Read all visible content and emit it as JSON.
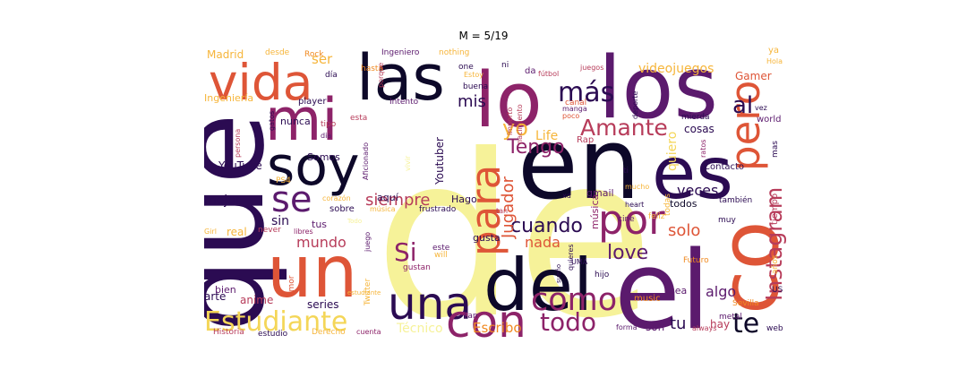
{
  "title": "M = 5/19",
  "palette": {
    "black": "#0d0829",
    "deep_purple": "#2b0b52",
    "purple": "#5b1a6d",
    "magenta": "#8d2369",
    "crimson": "#b73c5a",
    "red_orange": "#de5537",
    "orange": "#f08a22",
    "amber": "#f6b53a",
    "yellow": "#f4d658",
    "pale_yellow": "#f6f299"
  },
  "words": [
    {
      "text": "de",
      "color": "#f6f299"
    },
    {
      "text": "en",
      "color": "#0d0829"
    },
    {
      "text": "es",
      "color": "#2b0b52"
    },
    {
      "text": "los",
      "color": "#5b1a6d"
    },
    {
      "text": "que",
      "color": "#2b0b52"
    },
    {
      "text": "el",
      "color": "#5b1a6d"
    },
    {
      "text": "lo",
      "color": "#8d2369"
    },
    {
      "text": "del",
      "color": "#0d0829"
    },
    {
      "text": "un",
      "color": "#de5537"
    },
    {
      "text": "las",
      "color": "#0d0829"
    },
    {
      "text": "mi",
      "color": "#8d2369"
    },
    {
      "text": "vida",
      "color": "#de5537"
    },
    {
      "text": "soy",
      "color": "#0d0829"
    },
    {
      "text": "co",
      "color": "#de5537"
    },
    {
      "text": "una",
      "color": "#2b0b52"
    },
    {
      "text": "con",
      "color": "#8d2369"
    },
    {
      "text": "por",
      "color": "#8d2369"
    },
    {
      "text": "para",
      "color": "#de5537"
    },
    {
      "text": "pero",
      "color": "#de5537"
    },
    {
      "text": "se",
      "color": "#5b1a6d"
    },
    {
      "text": "como",
      "color": "#8d2369"
    },
    {
      "text": "Estudiante",
      "color": "#f4d658"
    },
    {
      "text": "más",
      "color": "#2b0b52"
    },
    {
      "text": "Amante",
      "color": "#b73c5a"
    },
    {
      "text": "Instagram",
      "color": "#b73c5a"
    },
    {
      "text": "te",
      "color": "#0d0829"
    },
    {
      "text": "Si",
      "color": "#8d2369"
    },
    {
      "text": "todo",
      "color": "#8d2369"
    },
    {
      "text": "Tengo",
      "color": "#8d2369"
    },
    {
      "text": "cuando",
      "color": "#2b0b52"
    },
    {
      "text": "love",
      "color": "#5b1a6d"
    },
    {
      "text": "yo",
      "color": "#f6b53a"
    },
    {
      "text": "al",
      "color": "#2b0b52"
    },
    {
      "text": "Jugador",
      "color": "#de5537"
    },
    {
      "text": "videojuegos",
      "color": "#f6b53a"
    },
    {
      "text": "siempre",
      "color": "#b73c5a"
    },
    {
      "text": "mis",
      "color": "#2b0b52"
    },
    {
      "text": "algo",
      "color": "#5b1a6d"
    },
    {
      "text": "veces",
      "color": "#2b0b52"
    },
    {
      "text": "solo",
      "color": "#de5537"
    },
    {
      "text": "nada",
      "color": "#de5537"
    },
    {
      "text": "tu",
      "color": "#2b0b52"
    },
    {
      "text": "mundo",
      "color": "#b73c5a"
    },
    {
      "text": "Técnico",
      "color": "#f6f299"
    },
    {
      "text": "Escribo",
      "color": "#f08a22"
    },
    {
      "text": "quiero",
      "color": "#f4d658"
    },
    {
      "text": "Life",
      "color": "#f6b53a"
    },
    {
      "text": "sin",
      "color": "#2b0b52"
    },
    {
      "text": "mejor",
      "color": "#2b0b52"
    },
    {
      "text": "ser",
      "color": "#f6b53a"
    },
    {
      "text": "Gamer",
      "color": "#de5537"
    },
    {
      "text": "Youtuber",
      "color": "#2b0b52"
    },
    {
      "text": "música",
      "color": "#8d2369"
    },
    {
      "text": "Madrid",
      "color": "#f6b53a"
    },
    {
      "text": "Ingeniería",
      "color": "#f6b53a"
    },
    {
      "text": "YouTube",
      "color": "#2b0b52"
    },
    {
      "text": "cosas",
      "color": "#2b0b52"
    },
    {
      "text": "anime",
      "color": "#b73c5a"
    },
    {
      "text": "series",
      "color": "#2b0b52"
    },
    {
      "text": "arte",
      "color": "#2b0b52"
    },
    {
      "text": "bien",
      "color": "#5b1a6d"
    },
    {
      "text": "real",
      "color": "#f6b53a"
    },
    {
      "text": "nunca",
      "color": "#2b0b52"
    },
    {
      "text": "gusta",
      "color": "#2b0b52"
    },
    {
      "text": "sea",
      "color": "#5b1a6d"
    },
    {
      "text": "hay",
      "color": "#b73c5a"
    },
    {
      "text": "son",
      "color": "#5b1a6d"
    },
    {
      "text": "todos",
      "color": "#0d0829"
    },
    {
      "text": "tiempo",
      "color": "#b73c5a"
    },
    {
      "text": "Hago",
      "color": "#2b0b52"
    },
    {
      "text": "aquí",
      "color": "#2b0b52"
    },
    {
      "text": "Somos",
      "color": "#2b0b52"
    },
    {
      "text": "tus",
      "color": "#5b1a6d"
    },
    {
      "text": "sobre",
      "color": "#2b0b52"
    },
    {
      "text": "gmail",
      "color": "#5b1a6d"
    },
    {
      "text": "Contacto",
      "color": "#2b0b52"
    },
    {
      "text": "Rap",
      "color": "#b73c5a"
    },
    {
      "text": "music",
      "color": "#f08a22"
    },
    {
      "text": "Futuro",
      "color": "#f08a22"
    },
    {
      "text": "hijo",
      "color": "#2b0b52"
    },
    {
      "text": "world",
      "color": "#5b1a6d"
    },
    {
      "text": "mierda",
      "color": "#2b0b52"
    },
    {
      "text": "mas",
      "color": "#2b0b52"
    },
    {
      "text": "Fan",
      "color": "#5b1a6d"
    },
    {
      "text": "Historia",
      "color": "#b73c5a"
    },
    {
      "text": "estudio",
      "color": "#2b0b52"
    },
    {
      "text": "Derecho",
      "color": "#f6b53a"
    },
    {
      "text": "cuenta",
      "color": "#8d2369"
    },
    {
      "text": "forma",
      "color": "#5b1a6d"
    },
    {
      "text": "always",
      "color": "#b73c5a"
    },
    {
      "text": "web",
      "color": "#2b0b52"
    },
    {
      "text": "Sevilla",
      "color": "#f08a22"
    },
    {
      "text": "metal",
      "color": "#5b1a6d"
    },
    {
      "text": "US",
      "color": "#2b0b52"
    },
    {
      "text": "años",
      "color": "#f6b53a"
    },
    {
      "text": "muy",
      "color": "#2b0b52"
    },
    {
      "text": "feliz",
      "color": "#f6b53a"
    },
    {
      "text": "también",
      "color": "#2b0b52"
    },
    {
      "text": "quieres",
      "color": "#2b0b52"
    },
    {
      "text": "UMA",
      "color": "#2b0b52"
    },
    {
      "text": "cine",
      "color": "#5b1a6d"
    },
    {
      "text": "heart",
      "color": "#2b0b52"
    },
    {
      "text": "ti",
      "color": "#2b0b52"
    },
    {
      "text": "mucho",
      "color": "#f6b53a"
    },
    {
      "text": "estudiante",
      "color": "#f6b53a"
    },
    {
      "text": "gustan",
      "color": "#8d2369"
    },
    {
      "text": "will",
      "color": "#f6b53a"
    },
    {
      "text": "este",
      "color": "#5b1a6d"
    },
    {
      "text": "tan",
      "color": "#b73c5a"
    },
    {
      "text": "frustrado",
      "color": "#2b0b52"
    },
    {
      "text": "música",
      "color": "#f6b53a"
    },
    {
      "text": "corazón",
      "color": "#f6b53a"
    },
    {
      "text": "PS4",
      "color": "#f6b53a"
    },
    {
      "text": "Twitter",
      "color": "#f6b53a"
    },
    {
      "text": "juego",
      "color": "#5b1a6d"
    },
    {
      "text": "never",
      "color": "#b73c5a"
    },
    {
      "text": "libres",
      "color": "#8d2369"
    },
    {
      "text": "amor",
      "color": "#de5537"
    },
    {
      "text": "Girl",
      "color": "#f6b53a"
    },
    {
      "text": "gatos",
      "color": "#2b0b52"
    },
    {
      "text": "player",
      "color": "#2b0b52"
    },
    {
      "text": "Intento",
      "color": "#5b1a6d"
    },
    {
      "text": "Aficionado",
      "color": "#5b1a6d"
    },
    {
      "text": "esta",
      "color": "#b73c5a"
    },
    {
      "text": "tipo",
      "color": "#b73c5a"
    },
    {
      "text": "día",
      "color": "#2b0b52"
    },
    {
      "text": "dia",
      "color": "#5b1a6d"
    },
    {
      "text": "hasta",
      "color": "#f08a22"
    },
    {
      "text": "desde",
      "color": "#f6b53a"
    },
    {
      "text": "Rock",
      "color": "#f08a22"
    },
    {
      "text": "porque",
      "color": "#b73c5a"
    },
    {
      "text": "Ingeniero",
      "color": "#5b1a6d"
    },
    {
      "text": "nothing",
      "color": "#f6b53a"
    },
    {
      "text": "Estoy",
      "color": "#f6b53a"
    },
    {
      "text": "one",
      "color": "#2b0b52"
    },
    {
      "text": "ni",
      "color": "#2b0b52"
    },
    {
      "text": "da",
      "color": "#5b1a6d"
    },
    {
      "text": "buena",
      "color": "#2b0b52"
    },
    {
      "text": "fútbol",
      "color": "#b73c5a"
    },
    {
      "text": "juegos",
      "color": "#b73c5a"
    },
    {
      "text": "importo",
      "color": "#b73c5a"
    },
    {
      "text": "nacimiento",
      "color": "#b73c5a"
    },
    {
      "text": "manga",
      "color": "#5b1a6d"
    },
    {
      "text": "canal",
      "color": "#de5537"
    },
    {
      "text": "poco",
      "color": "#de5537"
    },
    {
      "text": "deporte",
      "color": "#2b0b52"
    },
    {
      "text": "ratos",
      "color": "#8d2369"
    },
    {
      "text": "xd",
      "color": "#2b0b52"
    },
    {
      "text": "todas",
      "color": "#f6b53a"
    },
    {
      "text": "sueño",
      "color": "#2b0b52"
    },
    {
      "text": "persona",
      "color": "#b73c5a"
    },
    {
      "text": "ya",
      "color": "#f6b53a"
    },
    {
      "text": "Hola",
      "color": "#f6b53a"
    },
    {
      "text": "vez",
      "color": "#2b0b52"
    },
    {
      "text": "vivir",
      "color": "#f6f299"
    },
    {
      "text": "Todo",
      "color": "#f6f299"
    }
  ]
}
